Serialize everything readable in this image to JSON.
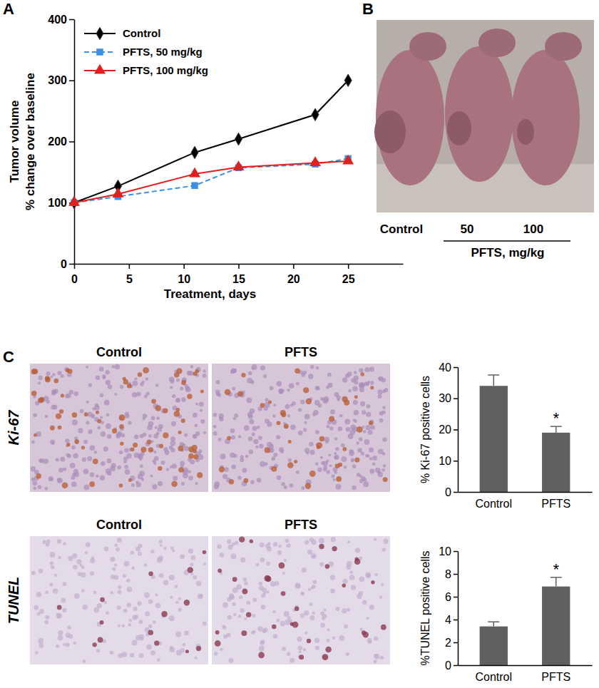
{
  "chart_data": [
    {
      "type": "line",
      "x_label": "Treatment, days",
      "y_label": [
        "Tumor volume",
        "% change over baseline"
      ],
      "x": [
        0,
        4,
        11,
        15,
        22,
        25
      ],
      "xlim": [
        0,
        30
      ],
      "xticks": [
        0,
        5,
        10,
        15,
        20,
        25
      ],
      "ylim": [
        0,
        400
      ],
      "yticks": [
        0,
        100,
        200,
        300,
        400
      ],
      "legend": "top-left",
      "grid": false,
      "series": [
        {
          "name": "Control",
          "color": "#000000",
          "marker": "diamond",
          "line_style": "solid",
          "values": [
            100,
            127,
            182,
            204,
            244,
            300
          ]
        },
        {
          "name": "PFTS, 50 mg/kg",
          "color": "#3a8fe6",
          "marker": "square",
          "line_style": "dashed",
          "values": [
            100,
            110,
            128,
            157,
            163,
            172
          ]
        },
        {
          "name": "PFTS, 100 mg/kg",
          "color": "#e0201e",
          "marker": "triangle",
          "line_style": "solid",
          "values": [
            100,
            114,
            147,
            158,
            165,
            168
          ]
        }
      ]
    },
    {
      "type": "bar",
      "y_label": "% Ki-67 positive cells",
      "categories": [
        "Control",
        "PFTS"
      ],
      "values": [
        34,
        19
      ],
      "errors": [
        3.5,
        2
      ],
      "color": "#606060",
      "ylim": [
        0,
        40
      ],
      "yticks": [
        0,
        10,
        20,
        30,
        40
      ],
      "annotations": [
        {
          "text": "*",
          "x": "PFTS"
        }
      ]
    },
    {
      "type": "bar",
      "y_label": "%TUNEL positive cells",
      "categories": [
        "Control",
        "PFTS"
      ],
      "values": [
        3.4,
        6.9
      ],
      "errors": [
        0.4,
        0.8
      ],
      "color": "#606060",
      "ylim": [
        0,
        10
      ],
      "yticks": [
        0,
        2,
        4,
        6,
        8,
        10
      ],
      "annotations": [
        {
          "text": "*",
          "x": "PFTS"
        }
      ]
    }
  ],
  "figure": {
    "panel_labels": [
      "A",
      "B",
      "C"
    ],
    "photo": {
      "labels": [
        "Control",
        "50",
        "100"
      ],
      "group_label": "PFTS, mg/kg"
    },
    "micrographs": {
      "columns": [
        "Control",
        "PFTS"
      ],
      "rows": [
        "Ki-67",
        "TUNEL"
      ]
    }
  }
}
